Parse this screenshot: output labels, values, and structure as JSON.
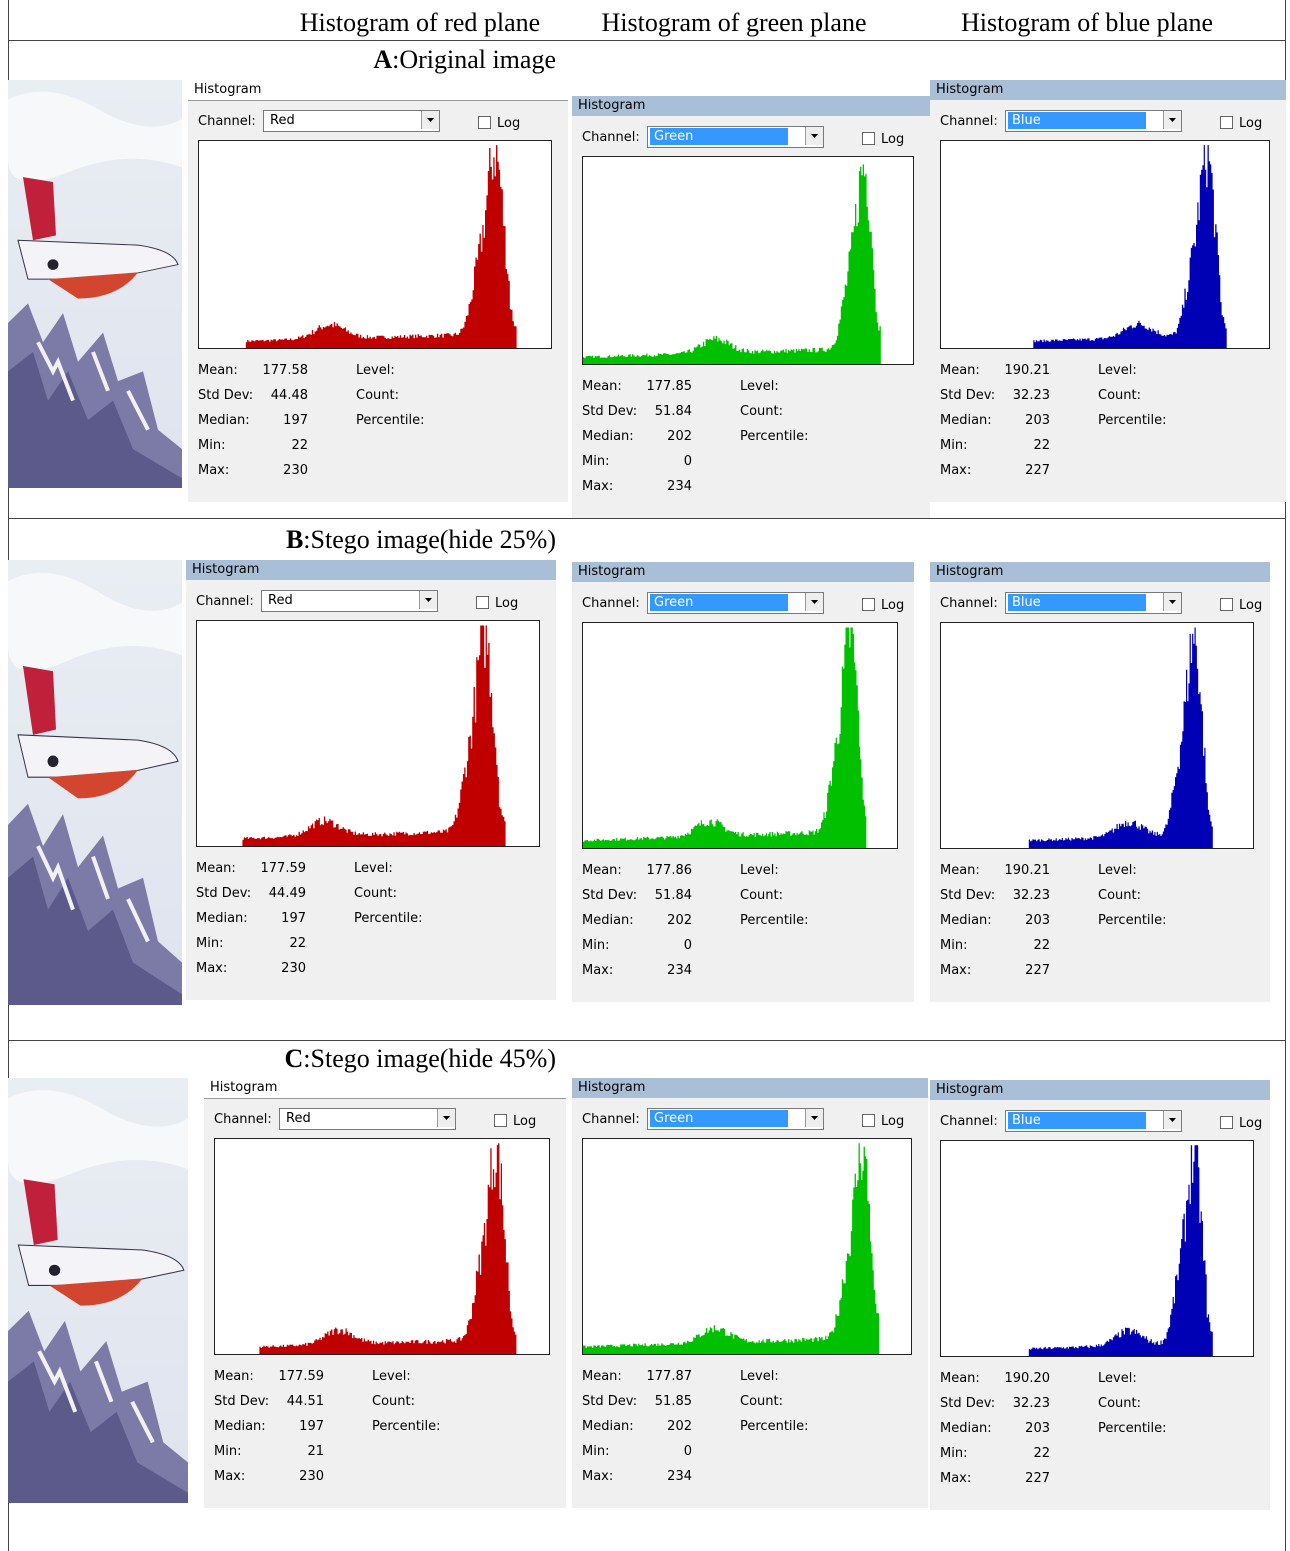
{
  "header": {
    "columns": [
      "Histogram of red plane",
      "Histogram of green plane",
      "Histogram of blue plane"
    ]
  },
  "sections": [
    {
      "letter": "A",
      "label": ":Original image",
      "panels": [
        {
          "title": "Histogram",
          "channel_label": "Channel:",
          "channel": "Red",
          "log": "Log",
          "info": [
            "Level:",
            "Count:",
            "Percentile:"
          ],
          "stats": [
            {
              "label": "Mean:",
              "value": "177.58"
            },
            {
              "label": "Std Dev:",
              "value": "44.48"
            },
            {
              "label": "Median:",
              "value": "197"
            },
            {
              "label": "Min:",
              "value": "22"
            },
            {
              "label": "Max:",
              "value": "230"
            }
          ]
        },
        {
          "title": "Histogram",
          "channel_label": "Channel:",
          "channel": "Green",
          "log": "Log",
          "info": [
            "Level:",
            "Count:",
            "Percentile:"
          ],
          "stats": [
            {
              "label": "Mean:",
              "value": "177.85"
            },
            {
              "label": "Std Dev:",
              "value": "51.84"
            },
            {
              "label": "Median:",
              "value": "202"
            },
            {
              "label": "Min:",
              "value": "0"
            },
            {
              "label": "Max:",
              "value": "234"
            }
          ]
        },
        {
          "title": "Histogram",
          "channel_label": "Channel:",
          "channel": "Blue",
          "log": "Log",
          "info": [
            "Level:",
            "Count:",
            "Percentile:"
          ],
          "stats": [
            {
              "label": "Mean:",
              "value": "190.21"
            },
            {
              "label": "Std Dev:",
              "value": "32.23"
            },
            {
              "label": "Median:",
              "value": "203"
            },
            {
              "label": "Min:",
              "value": "22"
            },
            {
              "label": "Max:",
              "value": "227"
            }
          ]
        }
      ]
    },
    {
      "letter": "B",
      "label": ":Stego image(hide 25%)",
      "panels": [
        {
          "title": "Histogram",
          "channel_label": "Channel:",
          "channel": "Red",
          "log": "Log",
          "info": [
            "Level:",
            "Count:",
            "Percentile:"
          ],
          "stats": [
            {
              "label": "Mean:",
              "value": "177.59"
            },
            {
              "label": "Std Dev:",
              "value": "44.49"
            },
            {
              "label": "Median:",
              "value": "197"
            },
            {
              "label": "Min:",
              "value": "22"
            },
            {
              "label": "Max:",
              "value": "230"
            }
          ]
        },
        {
          "title": "Histogram",
          "channel_label": "Channel:",
          "channel": "Green",
          "log": "Log",
          "info": [
            "Level:",
            "Count:",
            "Percentile:"
          ],
          "stats": [
            {
              "label": "Mean:",
              "value": "177.86"
            },
            {
              "label": "Std Dev:",
              "value": "51.84"
            },
            {
              "label": "Median:",
              "value": "202"
            },
            {
              "label": "Min:",
              "value": "0"
            },
            {
              "label": "Max:",
              "value": "234"
            }
          ]
        },
        {
          "title": "Histogram",
          "channel_label": "Channel:",
          "channel": "Blue",
          "log": "Log",
          "info": [
            "Level:",
            "Count:",
            "Percentile:"
          ],
          "stats": [
            {
              "label": "Mean:",
              "value": "190.21"
            },
            {
              "label": "Std Dev:",
              "value": "32.23"
            },
            {
              "label": "Median:",
              "value": "203"
            },
            {
              "label": "Min:",
              "value": "22"
            },
            {
              "label": "Max:",
              "value": "227"
            }
          ]
        }
      ]
    },
    {
      "letter": "C",
      "label": ":Stego image(hide 45%)",
      "panels": [
        {
          "title": "Histogram",
          "channel_label": "Channel:",
          "channel": "Red",
          "log": "Log",
          "info": [
            "Level:",
            "Count:",
            "Percentile:"
          ],
          "stats": [
            {
              "label": "Mean:",
              "value": "177.59"
            },
            {
              "label": "Std Dev:",
              "value": "44.51"
            },
            {
              "label": "Median:",
              "value": "197"
            },
            {
              "label": "Min:",
              "value": "21"
            },
            {
              "label": "Max:",
              "value": "230"
            }
          ]
        },
        {
          "title": "Histogram",
          "channel_label": "Channel:",
          "channel": "Green",
          "log": "Log",
          "info": [
            "Level:",
            "Count:",
            "Percentile:"
          ],
          "stats": [
            {
              "label": "Mean:",
              "value": "177.87"
            },
            {
              "label": "Std Dev:",
              "value": "51.85"
            },
            {
              "label": "Median:",
              "value": "202"
            },
            {
              "label": "Min:",
              "value": "0"
            },
            {
              "label": "Max:",
              "value": "234"
            }
          ]
        },
        {
          "title": "Histogram",
          "channel_label": "Channel:",
          "channel": "Blue",
          "log": "Log",
          "info": [
            "Level:",
            "Count:",
            "Percentile:"
          ],
          "stats": [
            {
              "label": "Mean:",
              "value": "190.20"
            },
            {
              "label": "Std Dev:",
              "value": "32.23"
            },
            {
              "label": "Median:",
              "value": "203"
            },
            {
              "label": "Min:",
              "value": "22"
            },
            {
              "label": "Max:",
              "value": "227"
            }
          ]
        }
      ]
    }
  ]
}
